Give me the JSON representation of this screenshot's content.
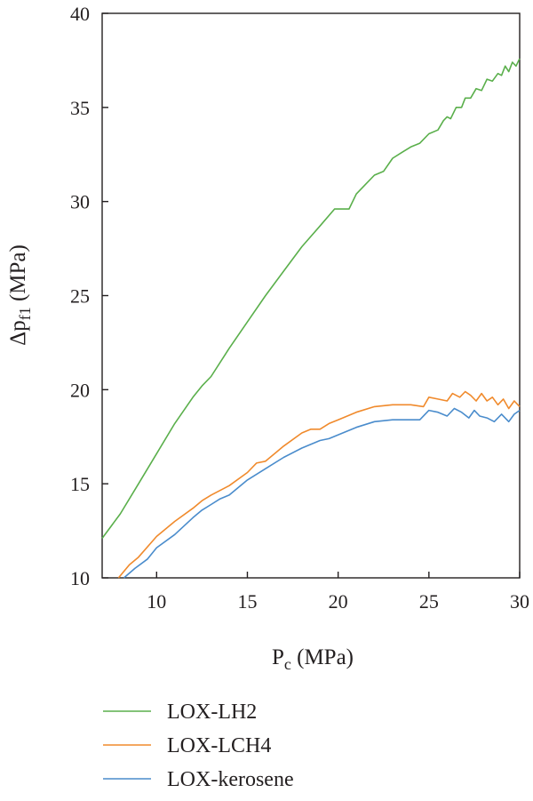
{
  "chart_data": {
    "type": "line",
    "title": "",
    "xlabel": {
      "main": "P",
      "sub": "c",
      "unit": " (MPa)"
    },
    "ylabel": {
      "main": "Δp",
      "sub": "f1",
      "unit": " (MPa)"
    },
    "xlim": [
      7,
      30
    ],
    "ylim": [
      10,
      40
    ],
    "xticks": [
      10,
      15,
      20,
      25,
      30
    ],
    "yticks": [
      10,
      15,
      20,
      25,
      30,
      35,
      40
    ],
    "grid": false,
    "legend_position": "bottom",
    "series": [
      {
        "name": "LOX-LH2",
        "color": "#5aaf4b",
        "x": [
          7.0,
          8.0,
          9.0,
          10.0,
          11.0,
          12.0,
          12.5,
          13.0,
          14.0,
          15.0,
          16.0,
          17.0,
          18.0,
          19.0,
          19.8,
          20.2,
          20.6,
          21.0,
          21.5,
          22.0,
          22.5,
          23.0,
          23.5,
          24.0,
          24.5,
          25.0,
          25.5,
          25.8,
          26.0,
          26.2,
          26.5,
          26.8,
          27.0,
          27.3,
          27.6,
          27.9,
          28.2,
          28.5,
          28.8,
          29.0,
          29.2,
          29.4,
          29.6,
          29.8,
          30.0
        ],
        "y": [
          12.1,
          13.4,
          15.0,
          16.6,
          18.2,
          19.6,
          20.2,
          20.7,
          22.2,
          23.6,
          25.0,
          26.3,
          27.6,
          28.7,
          29.6,
          29.6,
          29.6,
          30.4,
          30.9,
          31.4,
          31.6,
          32.3,
          32.6,
          32.9,
          33.1,
          33.6,
          33.8,
          34.3,
          34.5,
          34.4,
          35.0,
          35.0,
          35.5,
          35.5,
          36.0,
          35.9,
          36.5,
          36.4,
          36.8,
          36.7,
          37.2,
          36.9,
          37.4,
          37.2,
          37.6
        ]
      },
      {
        "name": "LOX-LCH4",
        "color": "#f08a2c",
        "x": [
          7.9,
          8.5,
          9.0,
          10.0,
          11.0,
          12.0,
          12.5,
          13.0,
          14.0,
          15.0,
          15.5,
          16.0,
          17.0,
          18.0,
          18.5,
          19.0,
          19.5,
          20.0,
          21.0,
          22.0,
          23.0,
          24.0,
          24.7,
          25.0,
          25.5,
          26.0,
          26.3,
          26.7,
          27.0,
          27.3,
          27.6,
          27.9,
          28.2,
          28.5,
          28.8,
          29.1,
          29.4,
          29.7,
          30.0
        ],
        "y": [
          10.0,
          10.7,
          11.1,
          12.2,
          13.0,
          13.7,
          14.1,
          14.4,
          14.9,
          15.6,
          16.1,
          16.2,
          17.0,
          17.7,
          17.9,
          17.9,
          18.2,
          18.4,
          18.8,
          19.1,
          19.2,
          19.2,
          19.1,
          19.6,
          19.5,
          19.4,
          19.8,
          19.6,
          19.9,
          19.7,
          19.4,
          19.8,
          19.4,
          19.6,
          19.2,
          19.5,
          19.0,
          19.4,
          19.1
        ]
      },
      {
        "name": "LOX-kerosene",
        "color": "#4a8ccc",
        "x": [
          8.2,
          8.8,
          9.5,
          10.0,
          11.0,
          12.0,
          12.5,
          13.0,
          13.5,
          14.0,
          15.0,
          16.0,
          17.0,
          18.0,
          19.0,
          19.5,
          20.0,
          21.0,
          22.0,
          23.0,
          24.0,
          24.5,
          25.0,
          25.5,
          26.0,
          26.4,
          26.8,
          27.2,
          27.5,
          27.8,
          28.2,
          28.6,
          29.0,
          29.4,
          29.7,
          30.0
        ],
        "y": [
          10.0,
          10.5,
          11.0,
          11.6,
          12.3,
          13.2,
          13.6,
          13.9,
          14.2,
          14.4,
          15.2,
          15.8,
          16.4,
          16.9,
          17.3,
          17.4,
          17.6,
          18.0,
          18.3,
          18.4,
          18.4,
          18.4,
          18.9,
          18.8,
          18.6,
          19.0,
          18.8,
          18.5,
          18.9,
          18.6,
          18.5,
          18.3,
          18.7,
          18.3,
          18.7,
          18.9
        ]
      }
    ]
  }
}
